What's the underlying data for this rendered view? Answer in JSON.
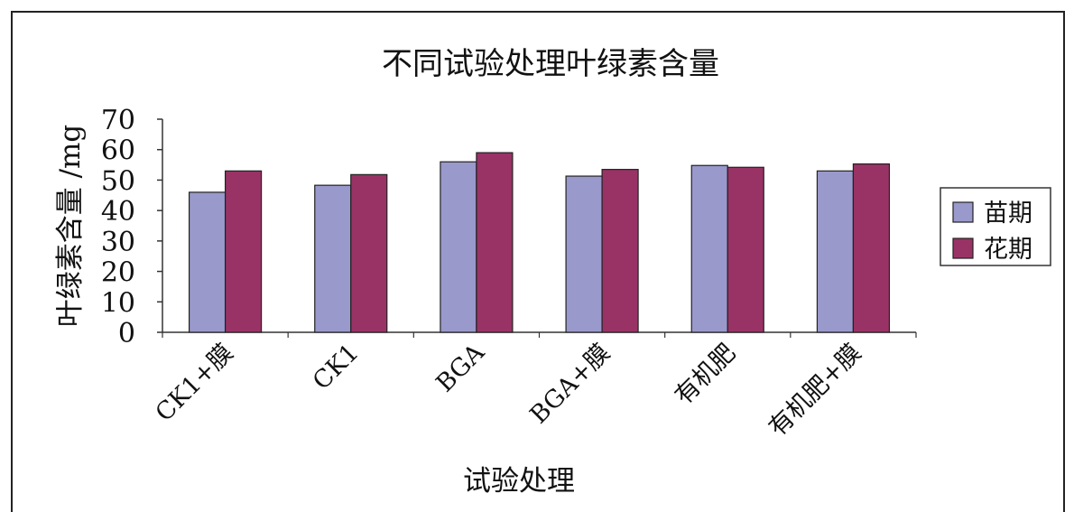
{
  "chart_data": {
    "type": "bar",
    "title": "不同试验处理叶绿素含量",
    "xlabel": "试验处理",
    "ylabel": "叶绿素含量 /mg",
    "ylim": [
      0,
      70
    ],
    "yticks": [
      "0",
      "10",
      "20",
      "30",
      "40",
      "50",
      "60",
      "70"
    ],
    "categories": [
      "CK1+膜",
      "CK1",
      "BGA",
      "BGA+膜",
      "有机肥",
      "有机肥+膜"
    ],
    "series": [
      {
        "name": "苗期",
        "color": "#9999cc",
        "values": [
          46,
          48.3,
          56,
          51.3,
          54.8,
          53
        ]
      },
      {
        "name": "花期",
        "color": "#993366",
        "values": [
          53,
          51.8,
          59,
          53.5,
          54.2,
          55.3
        ]
      }
    ],
    "legend": "right",
    "grid": false
  }
}
